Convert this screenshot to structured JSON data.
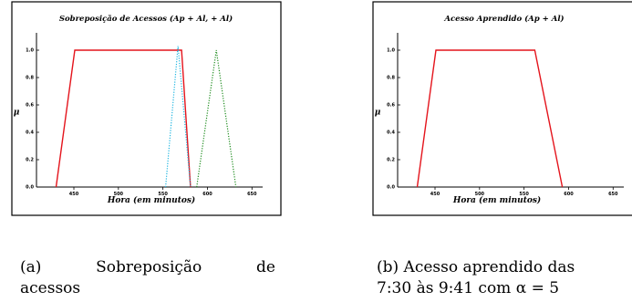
{
  "chart_data": [
    {
      "type": "line",
      "title": "Sobreposição de Acessos (Ap + Al, + Al)",
      "xlabel": "Hora (em minutos)",
      "ylabel": "μ",
      "xlim": [
        408,
        662
      ],
      "ylim": [
        0,
        1.1
      ],
      "xticks": [
        450,
        500,
        550,
        600,
        650
      ],
      "yticks": [
        0.0,
        0.2,
        0.4,
        0.6,
        0.8,
        1.0
      ],
      "ytick_labels": [
        "0.0",
        "0.2",
        "0.4",
        "0.6",
        "0.8",
        "1.0"
      ],
      "grid": false,
      "series": [
        {
          "color": "#e4141c",
          "dash": "solid",
          "x": [
            430,
            451,
            571,
            581
          ],
          "y": [
            0,
            1,
            1,
            0
          ]
        },
        {
          "color": "#1ab4e0",
          "dash": "dotted",
          "x": [
            553,
            567,
            581
          ],
          "y": [
            0,
            1.03,
            0
          ]
        },
        {
          "color": "#1a8a1a",
          "dash": "dotted",
          "x": [
            588,
            610,
            632
          ],
          "y": [
            0,
            1.0,
            0
          ]
        }
      ]
    },
    {
      "type": "line",
      "title": "Acesso Aprendido (Ap + Al)",
      "xlabel": "Hora (em minutos)",
      "ylabel": "μ",
      "xlim": [
        408,
        662
      ],
      "ylim": [
        0,
        1.1
      ],
      "xticks": [
        450,
        500,
        550,
        600,
        650
      ],
      "yticks": [
        0.0,
        0.2,
        0.4,
        0.6,
        0.8,
        1.0
      ],
      "ytick_labels": [
        "0.0",
        "0.2",
        "0.4",
        "0.6",
        "0.8",
        "1.0"
      ],
      "grid": false,
      "series": [
        {
          "color": "#e4141c",
          "dash": "solid",
          "x": [
            430,
            451,
            562,
            593
          ],
          "y": [
            0,
            1,
            1,
            0
          ]
        }
      ]
    }
  ],
  "captions": {
    "a_line1_parts": [
      "(a)",
      "Sobreposição",
      "de"
    ],
    "a_line2": "acessos",
    "b_line1": "(b) Acesso aprendido das",
    "b_line2": "7:30 às 9:41 com α = 5"
  }
}
